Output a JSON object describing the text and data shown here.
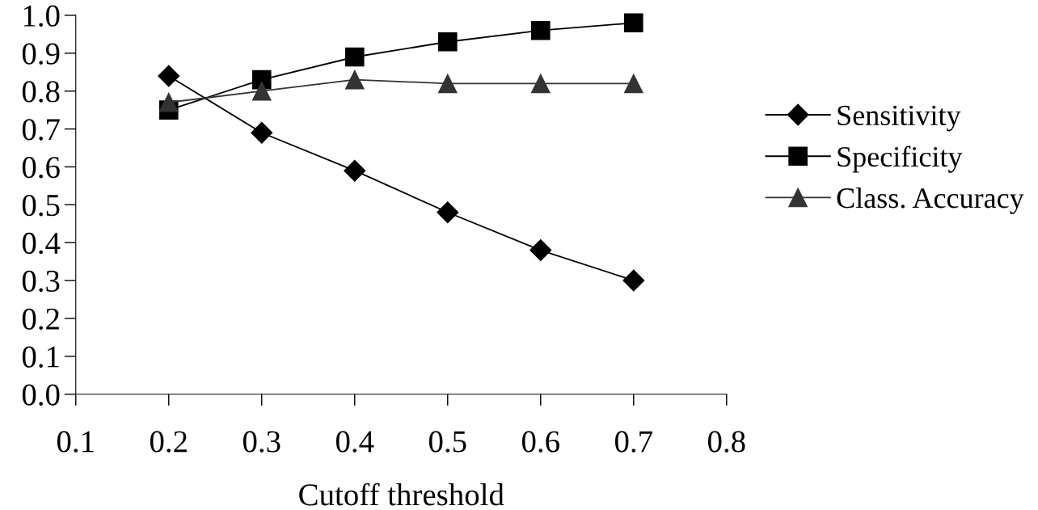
{
  "chart_data": {
    "type": "line",
    "xlabel": "Cutoff threshold",
    "x": [
      0.2,
      0.3,
      0.4,
      0.5,
      0.6,
      0.7
    ],
    "series": [
      {
        "name": "Sensitivity",
        "color": "#000000",
        "marker": "diamond",
        "values": [
          0.84,
          0.69,
          0.59,
          0.48,
          0.38,
          0.3
        ]
      },
      {
        "name": "Specificity",
        "color": "#000000",
        "marker": "square",
        "values": [
          0.75,
          0.83,
          0.89,
          0.93,
          0.96,
          0.98
        ]
      },
      {
        "name": "Class. Accuracy",
        "color": "#333333",
        "marker": "triangle",
        "values": [
          0.77,
          0.8,
          0.83,
          0.82,
          0.82,
          0.82
        ]
      }
    ],
    "xlim": [
      0.1,
      0.8
    ],
    "xticks": [
      {
        "value": 0.1,
        "label": "0.1"
      },
      {
        "value": 0.2,
        "label": "0.2"
      },
      {
        "value": 0.3,
        "label": "0.3"
      },
      {
        "value": 0.4,
        "label": "0.4"
      },
      {
        "value": 0.5,
        "label": "0.5"
      },
      {
        "value": 0.6,
        "label": "0.6"
      },
      {
        "value": 0.7,
        "label": "0.7"
      },
      {
        "value": 0.8,
        "label": "0.8"
      }
    ],
    "ylim": [
      0,
      1
    ],
    "yticks": [
      {
        "value": 0,
        "label": "0.0"
      },
      {
        "value": 0.1,
        "label": "0.1"
      },
      {
        "value": 0.2,
        "label": "0.2"
      },
      {
        "value": 0.3,
        "label": "0.3"
      },
      {
        "value": 0.4,
        "label": "0.4"
      },
      {
        "value": 0.5,
        "label": "0.5"
      },
      {
        "value": 0.6,
        "label": "0.6"
      },
      {
        "value": 0.7,
        "label": "0.7"
      },
      {
        "value": 0.8,
        "label": "0.8"
      },
      {
        "value": 0.9,
        "label": "0.9"
      },
      {
        "value": 1,
        "label": "1.0"
      }
    ],
    "grid": false,
    "legend": "right",
    "line_style": "solid"
  }
}
